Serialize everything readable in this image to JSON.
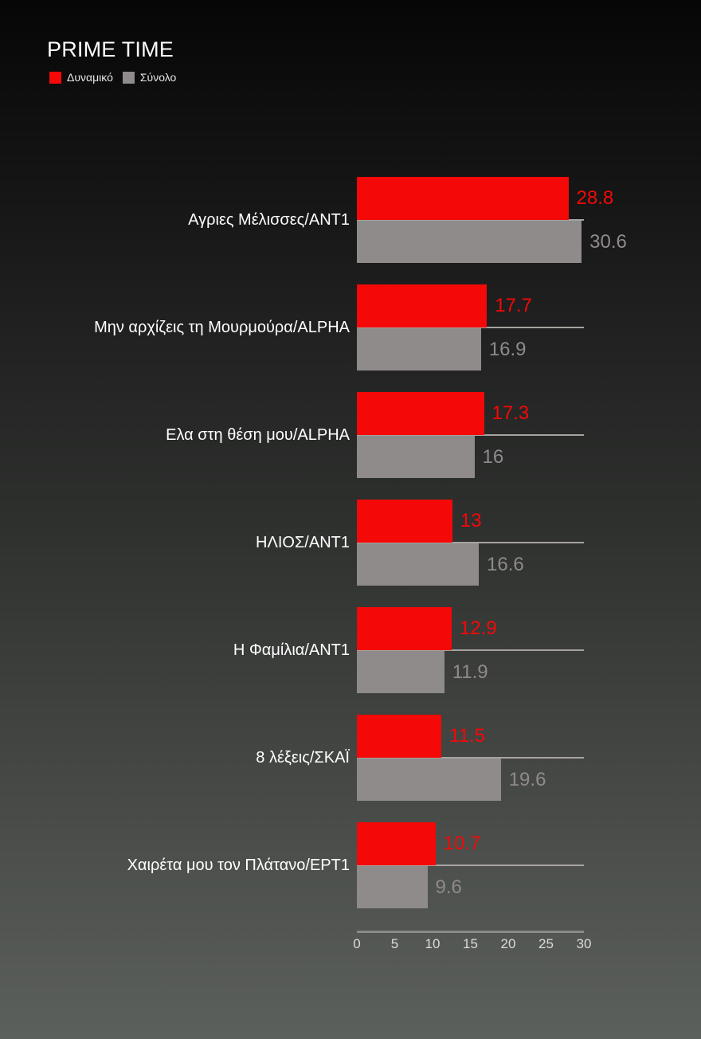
{
  "chart_data": {
    "type": "bar",
    "orientation": "horizontal",
    "title": "PRIME TIME",
    "legend": [
      "Δυναμικό",
      "Σύνολο"
    ],
    "categories": [
      "Αγριες Μέλισσες/ANT1",
      "Μην αρχίζεις τη Μουρμούρα/ALPHA",
      "Ελα στη θέση μου/ALPHA",
      "ΗΛΙΟΣ/ΑΝΤ1",
      "Η Φαμίλια/ΑΝΤ1",
      "8 λέξεις/ΣΚΑΪ",
      "Χαιρέτα μου τον Πλάτανο/ΕΡΤ1"
    ],
    "series": [
      {
        "name": "Δυναμικό",
        "color": "#f50808",
        "values": [
          28.8,
          17.7,
          17.3,
          13,
          12.9,
          11.5,
          10.7
        ]
      },
      {
        "name": "Σύνολο",
        "color": "#8f8b8a",
        "values": [
          30.6,
          16.9,
          16,
          16.6,
          11.9,
          19.6,
          9.6
        ]
      }
    ],
    "xlim": [
      0,
      30
    ],
    "xticks": [
      0,
      5,
      10,
      15,
      20,
      25,
      30
    ],
    "xlabel": "",
    "ylabel": "",
    "grid": false,
    "legend_position": "top-left"
  },
  "title": "PRIME TIME",
  "legend": {
    "items": [
      {
        "label": "Δυναμικό",
        "color": "#f50808"
      },
      {
        "label": "Σύνολο",
        "color": "#8f8b8a"
      }
    ]
  },
  "rows": [
    {
      "label": "Αγριες Μέλισσες/ANT1",
      "red": "28.8",
      "gray": "30.6"
    },
    {
      "label": "Μην αρχίζεις τη Μουρμούρα/ALPHA",
      "red": "17.7",
      "gray": "16.9"
    },
    {
      "label": "Ελα στη θέση μου/ALPHA",
      "red": "17.3",
      "gray": "16"
    },
    {
      "label": "ΗΛΙΟΣ/ΑΝΤ1",
      "red": "13",
      "gray": "16.6"
    },
    {
      "label": "Η Φαμίλια/ΑΝΤ1",
      "red": "12.9",
      "gray": "11.9"
    },
    {
      "label": "8 λέξεις/ΣΚΑΪ",
      "red": "11.5",
      "gray": "19.6"
    },
    {
      "label": "Χαιρέτα μου τον Πλάτανο/ΕΡΤ1",
      "red": "10.7",
      "gray": "9.6"
    }
  ],
  "axis": {
    "ticks": [
      "0",
      "5",
      "10",
      "15",
      "20",
      "25",
      "30"
    ]
  }
}
